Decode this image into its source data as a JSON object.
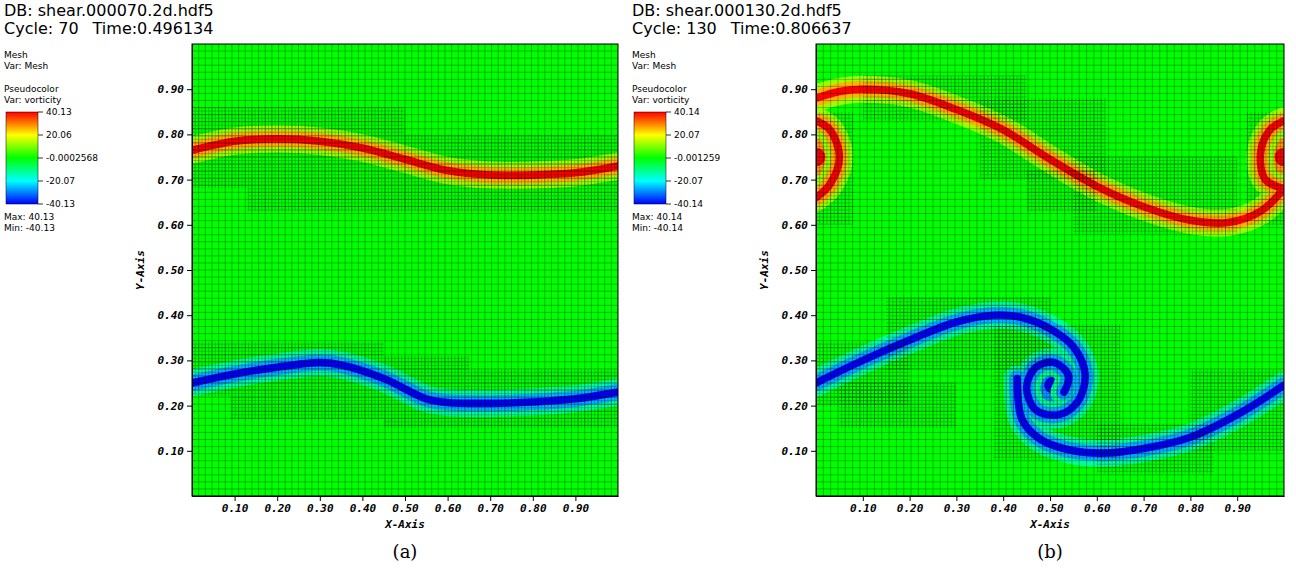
{
  "chart_data": [
    {
      "type": "heatmap",
      "db": "DB: shear.000070.2d.hdf5",
      "cycle": "Cycle: 70",
      "time": "Time:0.496134",
      "mesh_label": "Mesh",
      "mesh_var": "Var: Mesh",
      "plot_label": "Pseudocolor",
      "plot_var": "Var: vorticity",
      "x_label": "X-Axis",
      "y_label": "Y-Axis",
      "caption": "(a)",
      "xlim": [
        0,
        1
      ],
      "ylim": [
        0,
        1
      ],
      "xticks": [
        {
          "value": 0.1,
          "label": "0.10"
        },
        {
          "value": 0.2,
          "label": "0.20"
        },
        {
          "value": 0.3,
          "label": "0.30"
        },
        {
          "value": 0.4,
          "label": "0.40"
        },
        {
          "value": 0.5,
          "label": "0.50"
        },
        {
          "value": 0.6,
          "label": "0.60"
        },
        {
          "value": 0.7,
          "label": "0.70"
        },
        {
          "value": 0.8,
          "label": "0.80"
        },
        {
          "value": 0.9,
          "label": "0.90"
        }
      ],
      "yticks": [
        {
          "value": 0.1,
          "label": "0.10"
        },
        {
          "value": 0.2,
          "label": "0.20"
        },
        {
          "value": 0.3,
          "label": "0.30"
        },
        {
          "value": 0.4,
          "label": "0.40"
        },
        {
          "value": 0.5,
          "label": "0.50"
        },
        {
          "value": 0.6,
          "label": "0.60"
        },
        {
          "value": 0.7,
          "label": "0.70"
        },
        {
          "value": 0.8,
          "label": "0.80"
        },
        {
          "value": 0.9,
          "label": "0.90"
        }
      ],
      "colorbar": {
        "range": [
          -40.13,
          40.13
        ],
        "ticks": [
          40.13,
          20.06,
          -0.0002568,
          -20.07,
          -40.13
        ],
        "max": "Max: 40.13",
        "min": "Min: -40.13"
      },
      "mesh": {
        "cells": 64,
        "refinement": 2,
        "patches": [
          [
            0,
            0.68,
            0.5,
            0.86
          ],
          [
            0.5,
            0.63,
            1.0,
            0.8
          ],
          [
            0.13,
            0.63,
            0.5,
            0.68
          ],
          [
            0,
            0.22,
            0.45,
            0.34
          ],
          [
            0.45,
            0.15,
            1.0,
            0.28
          ],
          [
            0.09,
            0.17,
            0.45,
            0.22
          ],
          [
            0.45,
            0.28,
            0.65,
            0.31
          ]
        ]
      },
      "layers": [
        {
          "value": 40.13,
          "x": [
            0,
            0.1,
            0.2,
            0.3,
            0.4,
            0.5,
            0.6,
            0.7,
            0.8,
            0.9,
            1.0
          ],
          "y": [
            0.765,
            0.785,
            0.79,
            0.785,
            0.77,
            0.745,
            0.72,
            0.71,
            0.71,
            0.715,
            0.73
          ],
          "cores": []
        },
        {
          "value": -40.13,
          "x": [
            0,
            0.1,
            0.2,
            0.3,
            0.35,
            0.45,
            0.55,
            0.6,
            0.7,
            0.8,
            0.9,
            1.0
          ],
          "y": [
            0.25,
            0.27,
            0.285,
            0.295,
            0.29,
            0.26,
            0.215,
            0.207,
            0.205,
            0.208,
            0.215,
            0.23
          ],
          "cores": []
        }
      ]
    },
    {
      "type": "heatmap",
      "db": "DB: shear.000130.2d.hdf5",
      "cycle": "Cycle: 130",
      "time": "Time:0.806637",
      "mesh_label": "Mesh",
      "mesh_var": "Var: Mesh",
      "plot_label": "Pseudocolor",
      "plot_var": "Var: vorticity",
      "x_label": "X-Axis",
      "y_label": "Y-Axis",
      "caption": "(b)",
      "xlim": [
        0,
        1
      ],
      "ylim": [
        0,
        1
      ],
      "xticks": [
        {
          "value": 0.1,
          "label": "0.10"
        },
        {
          "value": 0.2,
          "label": "0.20"
        },
        {
          "value": 0.3,
          "label": "0.30"
        },
        {
          "value": 0.4,
          "label": "0.40"
        },
        {
          "value": 0.5,
          "label": "0.50"
        },
        {
          "value": 0.6,
          "label": "0.60"
        },
        {
          "value": 0.7,
          "label": "0.70"
        },
        {
          "value": 0.8,
          "label": "0.80"
        },
        {
          "value": 0.9,
          "label": "0.90"
        }
      ],
      "yticks": [
        {
          "value": 0.1,
          "label": "0.10"
        },
        {
          "value": 0.2,
          "label": "0.20"
        },
        {
          "value": 0.3,
          "label": "0.30"
        },
        {
          "value": 0.4,
          "label": "0.40"
        },
        {
          "value": 0.5,
          "label": "0.50"
        },
        {
          "value": 0.6,
          "label": "0.60"
        },
        {
          "value": 0.7,
          "label": "0.70"
        },
        {
          "value": 0.8,
          "label": "0.80"
        },
        {
          "value": 0.9,
          "label": "0.90"
        }
      ],
      "colorbar": {
        "range": [
          -40.14,
          40.14
        ],
        "ticks": [
          40.14,
          20.07,
          -0.001259,
          -20.07,
          -40.14
        ],
        "max": "Max: 40.14",
        "min": "Min: -40.14"
      },
      "mesh": {
        "cells": 64,
        "refinement": 2,
        "patches": [
          [
            0,
            0.6,
            0.08,
            0.85
          ],
          [
            0.92,
            0.6,
            1.0,
            0.85
          ],
          [
            0.1,
            0.83,
            0.45,
            0.93
          ],
          [
            0.35,
            0.7,
            0.62,
            0.88
          ],
          [
            0.55,
            0.58,
            0.9,
            0.75
          ],
          [
            0.45,
            0.63,
            0.6,
            0.72
          ],
          [
            0,
            0.2,
            0.2,
            0.34
          ],
          [
            0.15,
            0.28,
            0.5,
            0.44
          ],
          [
            0.38,
            0.08,
            0.65,
            0.38
          ],
          [
            0.6,
            0.05,
            0.85,
            0.16
          ],
          [
            0.8,
            0.1,
            1.0,
            0.28
          ],
          [
            0.05,
            0.15,
            0.3,
            0.25
          ]
        ]
      },
      "layers": [
        {
          "value": 40.14,
          "x": [
            0,
            0.05,
            0.1,
            0.2,
            0.3,
            0.4,
            0.5,
            0.6,
            0.7,
            0.8,
            0.88,
            0.95,
            1.0,
            null,
            0,
            0.03,
            0.05,
            0.03,
            0,
            null,
            1.0,
            0.96,
            0.95,
            0.97,
            1.0
          ],
          "y": [
            0.88,
            0.895,
            0.9,
            0.89,
            0.855,
            0.81,
            0.745,
            0.685,
            0.64,
            0.61,
            0.605,
            0.63,
            0.68,
            null,
            0.66,
            0.69,
            0.75,
            0.81,
            0.83,
            null,
            0.68,
            0.7,
            0.76,
            0.81,
            0.83
          ],
          "cores": [
            {
              "x": 0,
              "y": 0.75,
              "r": 0.04
            },
            {
              "x": 1.0,
              "y": 0.75,
              "r": 0.04
            }
          ]
        },
        {
          "value": -40.14,
          "x": [
            0,
            0.1,
            0.2,
            0.3,
            0.38,
            0.44,
            0.5,
            0.55,
            0.575,
            0.56,
            0.52,
            0.47,
            0.45,
            0.47,
            0.51,
            0.54,
            0.53,
            null,
            0.43,
            0.44,
            0.48,
            0.55,
            0.62,
            0.7,
            0.8,
            0.9,
            1.0
          ],
          "y": [
            0.25,
            0.3,
            0.345,
            0.385,
            0.4,
            0.395,
            0.37,
            0.33,
            0.27,
            0.21,
            0.18,
            0.19,
            0.24,
            0.285,
            0.295,
            0.265,
            0.23,
            null,
            0.26,
            0.17,
            0.125,
            0.1,
            0.095,
            0.105,
            0.13,
            0.18,
            0.245
          ],
          "cores": [
            {
              "x": 0.505,
              "y": 0.245,
              "r": 0.035
            }
          ]
        }
      ]
    }
  ]
}
